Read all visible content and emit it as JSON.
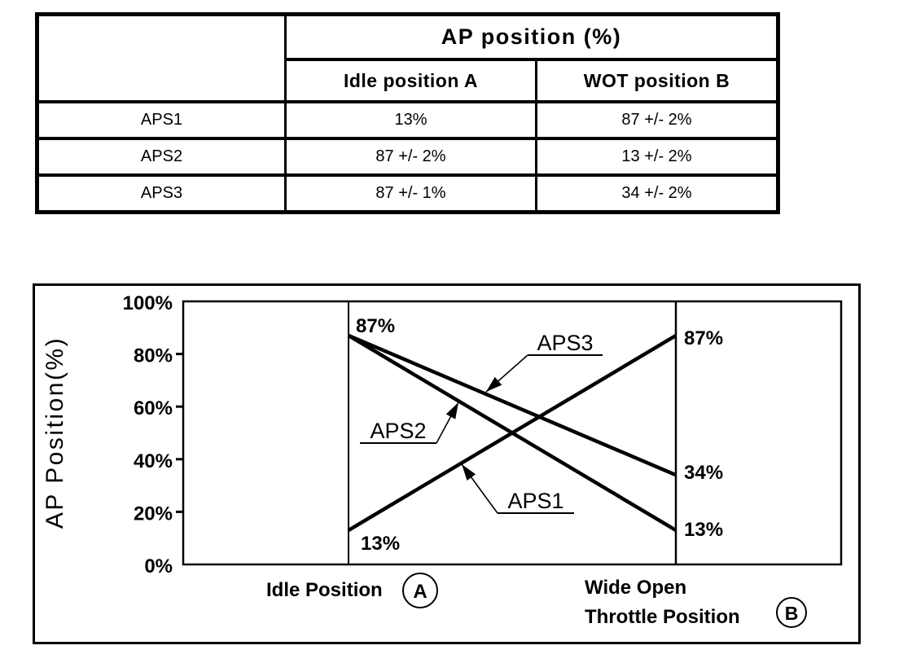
{
  "page": {
    "background": "#ffffff",
    "ink": "#000000"
  },
  "table": {
    "corner_label": "",
    "header": "AP position (%)",
    "columns": [
      "Idle position A",
      "WOT position B"
    ],
    "rows": [
      {
        "label": "APS1",
        "idle": "13%",
        "wot": "87 +/- 2%"
      },
      {
        "label": "APS2",
        "idle": "87 +/- 2%",
        "wot": "13 +/- 2%"
      },
      {
        "label": "APS3",
        "idle": "87 +/- 1%",
        "wot": "34 +/- 2%"
      }
    ]
  },
  "chart_data": {
    "type": "line",
    "title": "",
    "ylabel": "AP Position(%)",
    "xlabel": "",
    "ylim": [
      0,
      100
    ],
    "grid": false,
    "y_tick_values": [
      100,
      80,
      60,
      40,
      20,
      0
    ],
    "y_tick_labels": [
      "100%",
      "80%",
      "60%",
      "40%",
      "20%",
      "0%"
    ],
    "x_categories": [
      {
        "text": "Idle Position",
        "circled": "A"
      },
      {
        "text": "Wide Open",
        "text2": "Throttle Position",
        "circled": "B"
      }
    ],
    "series": [
      {
        "name": "APS1",
        "values": [
          13,
          87
        ]
      },
      {
        "name": "APS2",
        "values": [
          87,
          13
        ]
      },
      {
        "name": "APS3",
        "values": [
          87,
          34
        ]
      }
    ],
    "point_labels": [
      {
        "text": "87%",
        "x_index": 0,
        "value": 87
      },
      {
        "text": "13%",
        "x_index": 0,
        "value": 13
      },
      {
        "text": "87%",
        "x_index": 1,
        "value": 87
      },
      {
        "text": "34%",
        "x_index": 1,
        "value": 34
      },
      {
        "text": "13%",
        "x_index": 1,
        "value": 13
      }
    ]
  }
}
